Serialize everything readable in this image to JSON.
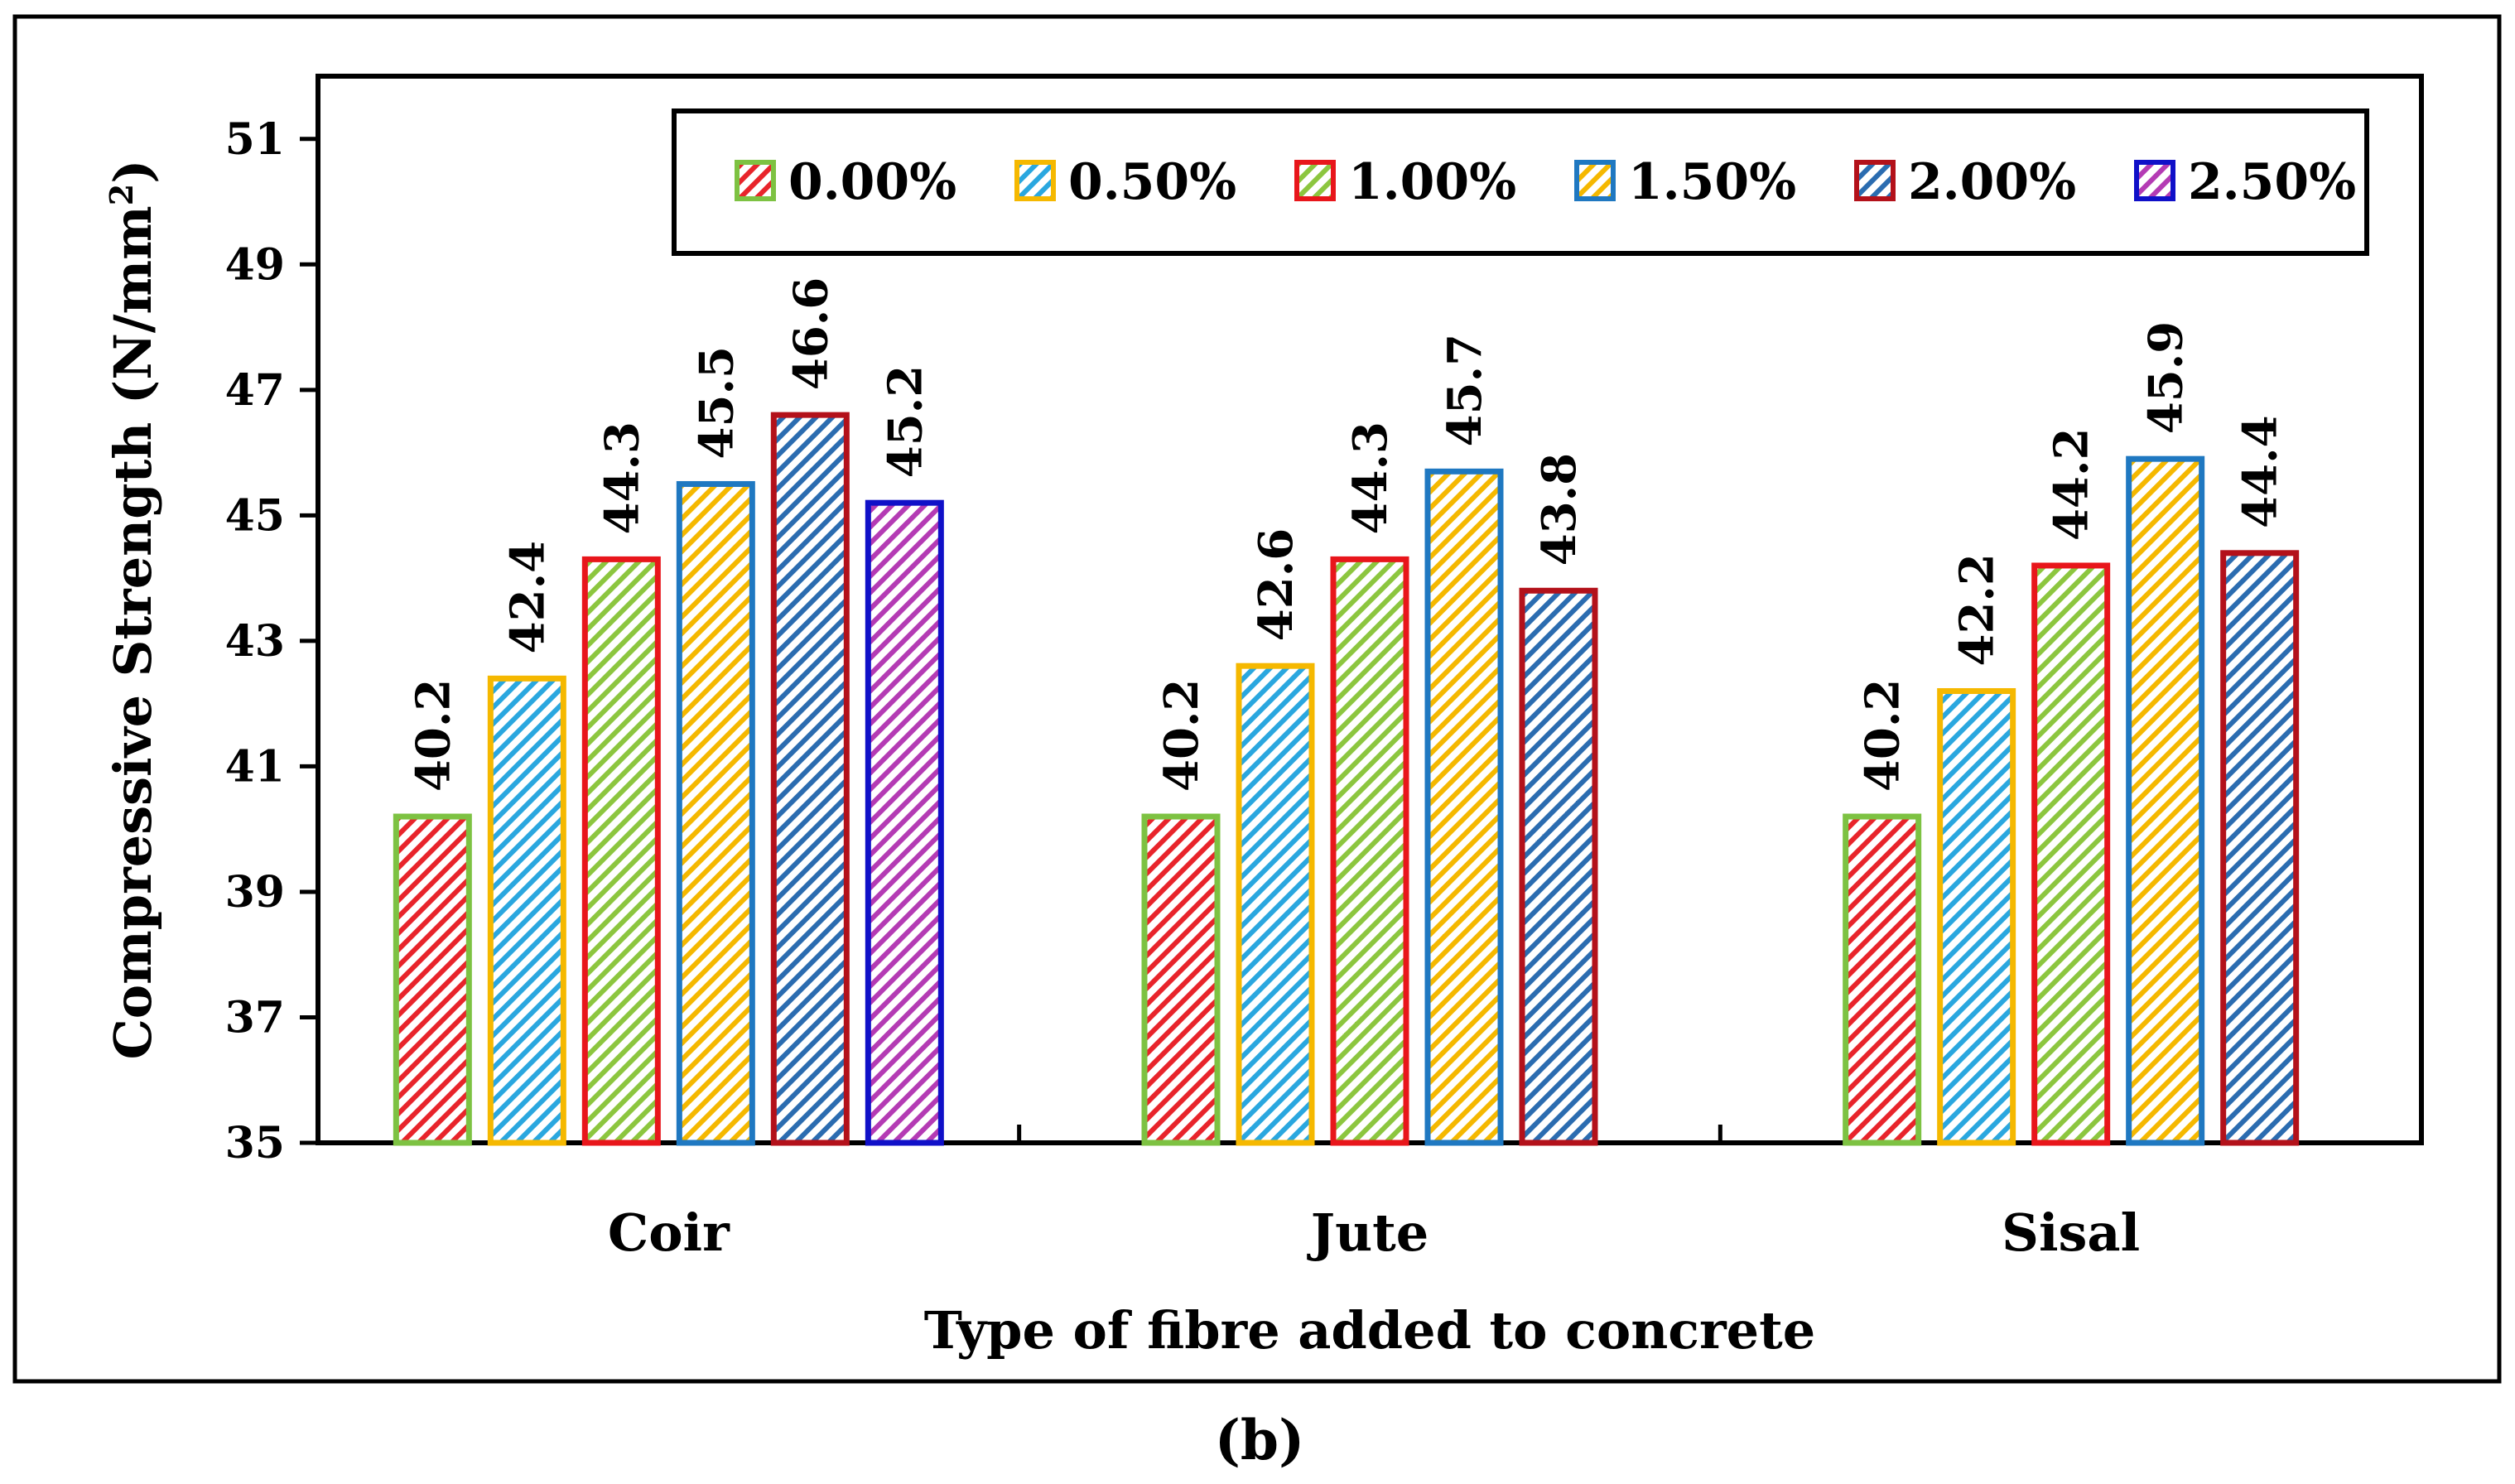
{
  "chart_data": {
    "type": "bar",
    "title": "",
    "xlabel": "Type of fibre added to concrete",
    "ylabel_main": "Compressive Strength (N/mm",
    "ylabel_sup": "2",
    "ylabel_end": ")",
    "ylim": [
      35,
      52
    ],
    "yticks": [
      35,
      37,
      39,
      41,
      43,
      45,
      47,
      49,
      51
    ],
    "categories": [
      "Coir",
      "Jute",
      "Sisal"
    ],
    "series": [
      {
        "name": "0.00%",
        "values": [
          40.2,
          40.2,
          40.2
        ],
        "stroke": "#7DC242",
        "hatch": "#E8242B"
      },
      {
        "name": "0.50%",
        "values": [
          42.4,
          42.6,
          42.2
        ],
        "stroke": "#F5B800",
        "hatch": "#2AA7DF"
      },
      {
        "name": "1.00%",
        "values": [
          44.3,
          44.3,
          44.2
        ],
        "stroke": "#E8161B",
        "hatch": "#8CC63F"
      },
      {
        "name": "1.50%",
        "values": [
          45.5,
          45.7,
          45.9
        ],
        "stroke": "#1F78C1",
        "hatch": "#F5B800"
      },
      {
        "name": "2.00%",
        "values": [
          46.6,
          43.8,
          44.4
        ],
        "stroke": "#B3111A",
        "hatch": "#2B6CB0"
      },
      {
        "name": "2.50%",
        "values": [
          45.2,
          null,
          null
        ],
        "stroke": "#1010C8",
        "hatch": "#B43BB4"
      }
    ],
    "data_labels": [
      [
        "40.2",
        "42.4",
        "44.3",
        "45.5",
        "46.6",
        "45.2"
      ],
      [
        "40.2",
        "42.6",
        "44.3",
        "45.7",
        "43.8"
      ],
      [
        "40.2",
        "42.2",
        "44.2",
        "45.9",
        "44.4"
      ]
    ],
    "legend_position": "top-right",
    "grid": false
  },
  "panel_label": {
    "open": "(",
    "letter": "b",
    "close": ")"
  }
}
